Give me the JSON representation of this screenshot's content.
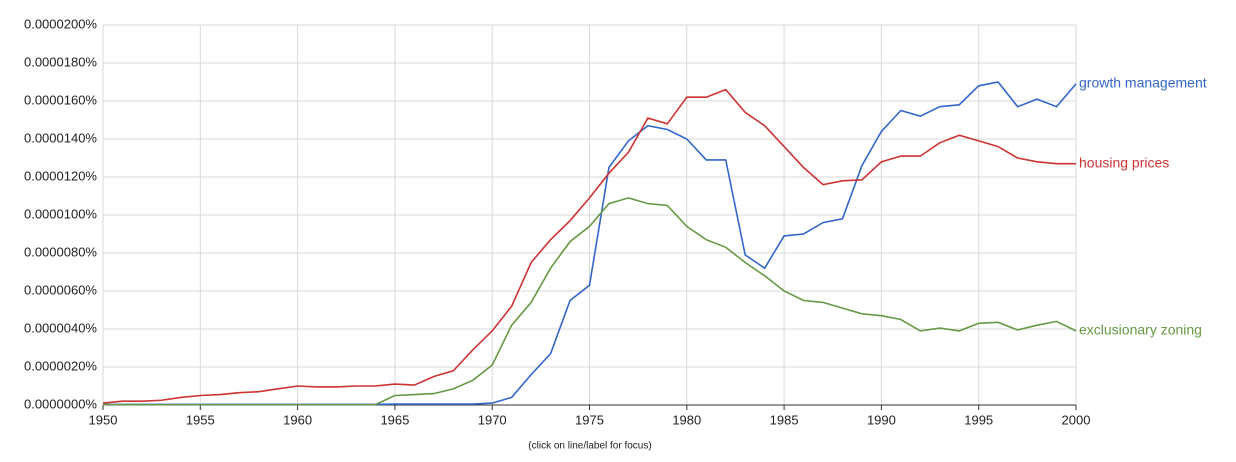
{
  "chart_data": {
    "type": "line",
    "note": "(click on line/label for focus)",
    "x": [
      1950,
      1951,
      1952,
      1953,
      1954,
      1955,
      1956,
      1957,
      1958,
      1959,
      1960,
      1961,
      1962,
      1963,
      1964,
      1965,
      1966,
      1967,
      1968,
      1969,
      1970,
      1971,
      1972,
      1973,
      1974,
      1975,
      1976,
      1977,
      1978,
      1979,
      1980,
      1981,
      1982,
      1983,
      1984,
      1985,
      1986,
      1987,
      1988,
      1989,
      1990,
      1991,
      1992,
      1993,
      1994,
      1995,
      1996,
      1997,
      1998,
      1999,
      2000
    ],
    "series": [
      {
        "name": "growth management",
        "color": "#3366cc",
        "values": [
          3e-08,
          3e-08,
          3e-08,
          3e-08,
          3e-08,
          3e-08,
          3e-08,
          3e-08,
          3e-08,
          3e-08,
          3e-08,
          3e-08,
          3e-08,
          3e-08,
          3e-08,
          5e-08,
          5e-08,
          5e-08,
          5e-08,
          5e-08,
          1e-07,
          4e-07,
          1.6e-06,
          2.7e-06,
          5.5e-06,
          6.3e-06,
          1.25e-05,
          1.39e-05,
          1.47e-05,
          1.45e-05,
          1.4e-05,
          1.29e-05,
          1.29e-05,
          7.9e-06,
          7.2e-06,
          8.9e-06,
          9e-06,
          9.6e-06,
          9.8e-06,
          1.26e-05,
          1.44e-05,
          1.55e-05,
          1.52e-05,
          1.57e-05,
          1.58e-05,
          1.68e-05,
          1.7e-05,
          1.57e-05,
          1.61e-05,
          1.57e-05,
          1.69e-05
        ]
      },
      {
        "name": "housing prices",
        "color": "#cc3333",
        "values": [
          1e-07,
          2e-07,
          2e-07,
          2.5e-07,
          4e-07,
          5e-07,
          5.5e-07,
          6.5e-07,
          7e-07,
          8.5e-07,
          1e-06,
          9.5e-07,
          9.5e-07,
          1e-06,
          1e-06,
          1.1e-06,
          1.05e-06,
          1.5e-06,
          1.8e-06,
          2.9e-06,
          3.9e-06,
          5.2e-06,
          7.5e-06,
          8.7e-06,
          9.7e-06,
          1.09e-05,
          1.22e-05,
          1.33e-05,
          1.51e-05,
          1.48e-05,
          1.62e-05,
          1.62e-05,
          1.66e-05,
          1.54e-05,
          1.47e-05,
          1.36e-05,
          1.25e-05,
          1.16e-05,
          1.18e-05,
          1.185e-05,
          1.28e-05,
          1.31e-05,
          1.31e-05,
          1.38e-05,
          1.42e-05,
          1.39e-05,
          1.36e-05,
          1.3e-05,
          1.28e-05,
          1.27e-05,
          1.27e-05
        ]
      },
      {
        "name": "exclusionary zoning",
        "color": "#669944",
        "values": [
          2e-08,
          2e-08,
          2e-08,
          2e-08,
          2e-08,
          2e-08,
          2e-08,
          2e-08,
          2e-08,
          2e-08,
          2e-08,
          2e-08,
          2e-08,
          2e-08,
          2e-08,
          5e-07,
          5.5e-07,
          6e-07,
          8.5e-07,
          1.3e-06,
          2.1e-06,
          4.2e-06,
          5.4e-06,
          7.2e-06,
          8.6e-06,
          9.4e-06,
          1.06e-05,
          1.09e-05,
          1.06e-05,
          1.05e-05,
          9.4e-06,
          8.7e-06,
          8.3e-06,
          7.5e-06,
          6.8e-06,
          6e-06,
          5.5e-06,
          5.4e-06,
          5.1e-06,
          4.8e-06,
          4.7e-06,
          4.5e-06,
          3.9e-06,
          4.05e-06,
          3.9e-06,
          4.3e-06,
          4.35e-06,
          3.95e-06,
          4.2e-06,
          4.4e-06,
          3.9e-06
        ]
      }
    ],
    "xlim": [
      1950,
      2000
    ],
    "xticks": [
      1950,
      1955,
      1960,
      1965,
      1970,
      1975,
      1980,
      1985,
      1990,
      1995,
      2000
    ],
    "ylim": [
      0,
      2e-05
    ],
    "yticks": [
      {
        "value": 0,
        "label": "0.0000000%"
      },
      {
        "value": 2e-06,
        "label": "0.0000020%"
      },
      {
        "value": 4e-06,
        "label": "0.0000040%"
      },
      {
        "value": 6e-06,
        "label": "0.0000060%"
      },
      {
        "value": 8e-06,
        "label": "0.0000080%"
      },
      {
        "value": 1e-05,
        "label": "0.0000100%"
      },
      {
        "value": 1.2e-05,
        "label": "0.0000120%"
      },
      {
        "value": 1.4e-05,
        "label": "0.0000140%"
      },
      {
        "value": 1.6e-05,
        "label": "0.0000160%"
      },
      {
        "value": 1.8e-05,
        "label": "0.0000180%"
      },
      {
        "value": 2e-05,
        "label": "0.0000200%"
      }
    ],
    "grid": true
  }
}
